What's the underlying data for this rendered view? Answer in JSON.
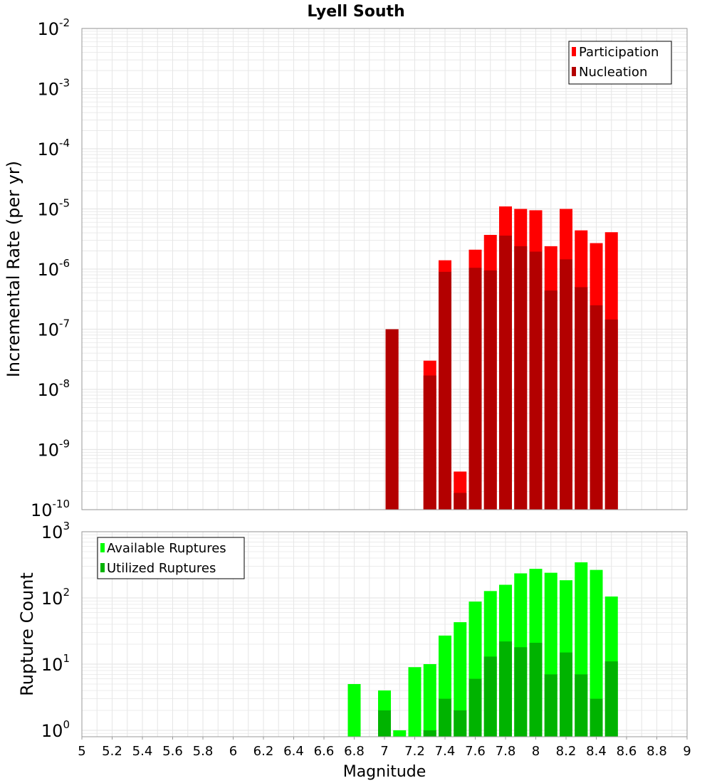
{
  "title": "Lyell South",
  "x_label": "Magnitude",
  "x_ticks": [
    "5",
    "5.2",
    "5.4",
    "5.6",
    "5.8",
    "6",
    "6.2",
    "6.4",
    "6.6",
    "6.8",
    "7",
    "7.2",
    "7.4",
    "7.6",
    "7.8",
    "8",
    "8.2",
    "8.4",
    "8.6",
    "8.8",
    "9"
  ],
  "colors": {
    "participation": "#ff0000",
    "nucleation": "#b30000",
    "available": "#00ff00",
    "utilized": "#00b300",
    "grid": "#e6e6e6",
    "axis": "#999999"
  },
  "chart_data": [
    {
      "type": "bar",
      "title": "Lyell South",
      "ylabel": "Incremental Rate (per yr)",
      "xlabel": "",
      "yscale": "log",
      "ylim": [
        1e-10,
        0.01
      ],
      "xlim": [
        5,
        9
      ],
      "y_tick_exponents": [
        "-2",
        "-3",
        "-4",
        "-5",
        "-6",
        "-7",
        "-8",
        "-9",
        "-10"
      ],
      "legend_position": "top-right",
      "x": [
        7.05,
        7.3,
        7.4,
        7.5,
        7.6,
        7.7,
        7.8,
        7.9,
        8.0,
        8.1,
        8.2,
        8.3,
        8.4,
        8.5
      ],
      "series": [
        {
          "name": "Participation",
          "color": "#ff0000",
          "values": [
            1e-07,
            3e-08,
            1.4e-06,
            4.3e-10,
            2.1e-06,
            3.7e-06,
            1.1e-05,
            1e-05,
            9.5e-06,
            2.4e-06,
            1e-05,
            4.4e-06,
            2.7e-06,
            4.1e-06
          ]
        },
        {
          "name": "Nucleation",
          "color": "#b30000",
          "values": [
            1e-07,
            1.7e-08,
            9e-07,
            1.9e-10,
            1.05e-06,
            9.5e-07,
            3.6e-06,
            2.4e-06,
            1.95e-06,
            4.4e-07,
            1.45e-06,
            5e-07,
            2.5e-07,
            1.45e-07
          ]
        }
      ]
    },
    {
      "type": "bar",
      "title": "",
      "ylabel": "Rupture Count",
      "xlabel": "Magnitude",
      "yscale": "log",
      "ylim": [
        0.8,
        1000
      ],
      "xlim": [
        5,
        9
      ],
      "y_tick_exponents": [
        "3",
        "2",
        "1",
        "0"
      ],
      "legend_position": "top-left",
      "x": [
        6.8,
        7.0,
        7.1,
        7.2,
        7.3,
        7.4,
        7.5,
        7.6,
        7.7,
        7.8,
        7.9,
        8.0,
        8.1,
        8.2,
        8.3,
        8.4,
        8.5
      ],
      "series": [
        {
          "name": "Available Ruptures",
          "color": "#00ff00",
          "values": [
            5,
            4,
            1,
            9,
            10,
            27,
            43,
            88,
            127,
            158,
            235,
            275,
            240,
            185,
            345,
            265,
            105
          ]
        },
        {
          "name": "Utilized Ruptures",
          "color": "#00b300",
          "values": [
            0,
            2,
            0,
            0,
            1,
            3,
            2,
            6,
            13,
            22,
            18,
            21,
            7,
            15,
            7,
            3,
            11
          ]
        }
      ]
    }
  ]
}
